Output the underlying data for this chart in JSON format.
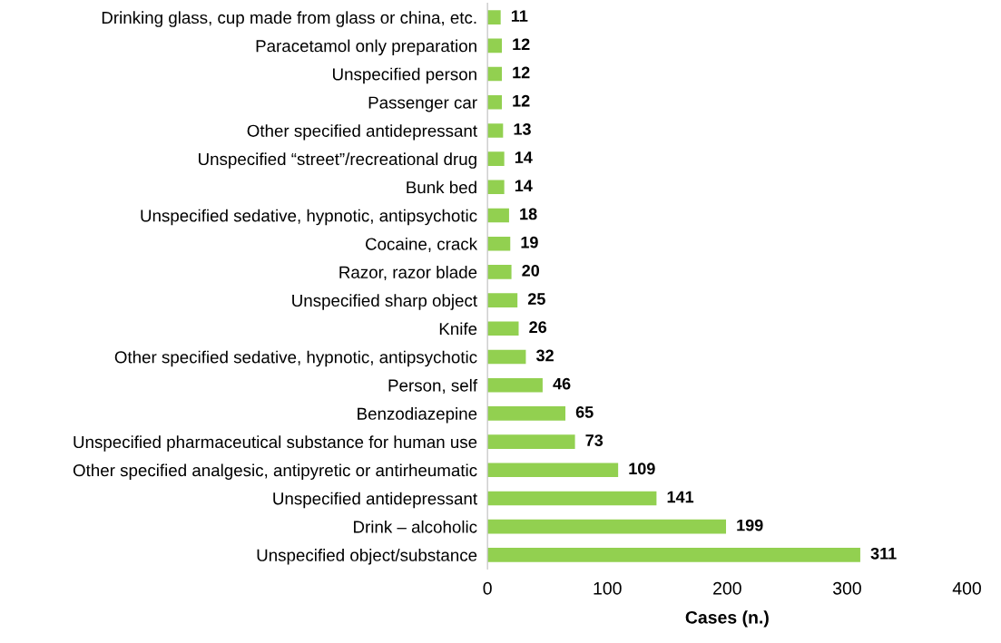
{
  "chart_data": {
    "type": "bar",
    "orientation": "horizontal",
    "xlabel": "Cases (n.)",
    "categories": [
      "Drinking glass, cup made from glass or china, etc.",
      "Paracetamol only preparation",
      "Unspecified person",
      "Passenger car",
      "Other specified antidepressant",
      "Unspecified “street”/recreational drug",
      "Bunk bed",
      "Unspecified sedative, hypnotic, antipsychotic",
      "Cocaine, crack",
      "Razor, razor blade",
      "Unspecified sharp object",
      "Knife",
      "Other specified sedative, hypnotic, antipsychotic",
      "Person, self",
      "Benzodiazepine",
      "Unspecified pharmaceutical substance for human use",
      "Other specified analgesic, antipyretic or antirheumatic",
      "Unspecified antidepressant",
      "Drink – alcoholic",
      "Unspecified object/substance"
    ],
    "values": [
      11,
      12,
      12,
      12,
      13,
      14,
      14,
      18,
      19,
      20,
      25,
      26,
      32,
      46,
      65,
      73,
      109,
      141,
      199,
      311
    ],
    "color": "#92d050",
    "xlim": [
      0,
      400
    ],
    "xticks": [
      0,
      100,
      200,
      300,
      400
    ],
    "data_labels": true,
    "grid": false,
    "legend": false
  }
}
